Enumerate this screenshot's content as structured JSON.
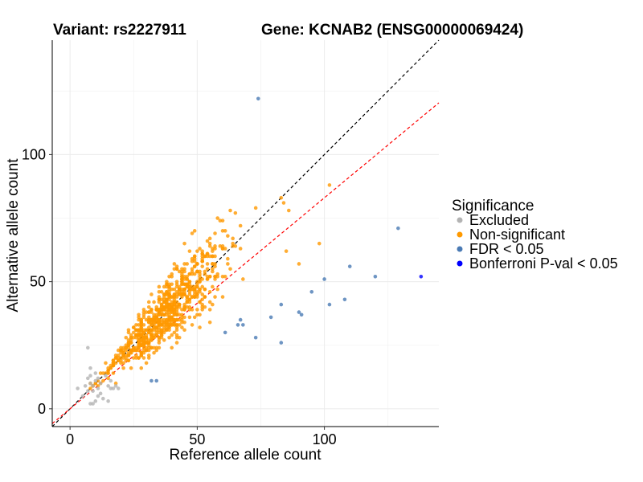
{
  "chart_data": {
    "type": "scatter",
    "title_left": "Variant: rs2227911",
    "title_right": "Gene: KCNAB2 (ENSG00000069424)",
    "xlabel": "Reference allele count",
    "ylabel": "Alternative allele count",
    "xlim": [
      -7,
      145
    ],
    "ylim": [
      -7,
      145
    ],
    "xticks": [
      0,
      50,
      100
    ],
    "yticks": [
      0,
      50,
      100
    ],
    "reference_lines": [
      {
        "name": "identity",
        "slope": 1.0,
        "intercept": 0,
        "color": "#000000",
        "dash": true
      },
      {
        "name": "fit",
        "slope": 0.83,
        "intercept": 0,
        "color": "#ff0000",
        "dash": true
      }
    ],
    "legend": {
      "title": "Significance",
      "entries": [
        {
          "label": "Excluded",
          "color": "#b3b3b3"
        },
        {
          "label": "Non-significant",
          "color": "#ff9900"
        },
        {
          "label": "FDR < 0.05",
          "color": "#4a7ab4"
        },
        {
          "label": "Bonferroni P-val < 0.05",
          "color": "#0000ff"
        }
      ]
    },
    "series": [
      {
        "name": "Excluded",
        "color": "#b3b3b3",
        "points": [
          [
            3,
            8
          ],
          [
            5,
            5
          ],
          [
            6,
            9
          ],
          [
            7,
            7
          ],
          [
            7,
            12
          ],
          [
            7,
            24
          ],
          [
            8,
            2
          ],
          [
            8,
            10
          ],
          [
            8,
            13
          ],
          [
            8,
            16
          ],
          [
            9,
            9
          ],
          [
            9,
            2
          ],
          [
            9,
            7
          ],
          [
            10,
            11
          ],
          [
            10,
            14
          ],
          [
            10,
            3
          ],
          [
            11,
            12
          ],
          [
            11,
            5
          ],
          [
            11,
            8
          ],
          [
            12,
            10
          ],
          [
            12,
            6
          ],
          [
            13,
            4
          ],
          [
            14,
            13
          ],
          [
            15,
            3
          ],
          [
            15,
            9
          ],
          [
            16,
            11
          ],
          [
            16,
            8
          ],
          [
            17,
            8
          ],
          [
            18,
            9
          ],
          [
            19,
            8
          ]
        ]
      },
      {
        "name": "Non-significant",
        "color": "#ff9900",
        "generated": {
          "count": 800,
          "x_range": [
            8,
            68
          ],
          "y_over_x_ratio_range": [
            0.55,
            1.45
          ],
          "note": "dense cloud along the diagonal; y roughly 0.55x to 1.45x"
        },
        "points": [
          [
            83,
            83
          ],
          [
            84,
            81
          ],
          [
            86,
            78
          ],
          [
            98,
            65
          ],
          [
            102,
            88
          ],
          [
            67,
            72
          ],
          [
            73,
            79
          ],
          [
            64,
            64
          ],
          [
            90,
            57
          ],
          [
            85,
            62
          ],
          [
            55,
            67
          ],
          [
            60,
            63
          ]
        ]
      },
      {
        "name": "FDR < 0.05",
        "color": "#4a7ab4",
        "points": [
          [
            74,
            122
          ],
          [
            129,
            71
          ],
          [
            110,
            56
          ],
          [
            100,
            51
          ],
          [
            120,
            52
          ],
          [
            95,
            46
          ],
          [
            108,
            43
          ],
          [
            90,
            38
          ],
          [
            91,
            37
          ],
          [
            83,
            41
          ],
          [
            102,
            41
          ],
          [
            79,
            36
          ],
          [
            61,
            30
          ],
          [
            66,
            33
          ],
          [
            67,
            35
          ],
          [
            68,
            33
          ],
          [
            73,
            28
          ],
          [
            83,
            26
          ],
          [
            32,
            11
          ],
          [
            34,
            11
          ]
        ]
      },
      {
        "name": "Bonferroni P-val < 0.05",
        "color": "#0000ff",
        "points": [
          [
            138,
            52
          ]
        ]
      }
    ]
  }
}
